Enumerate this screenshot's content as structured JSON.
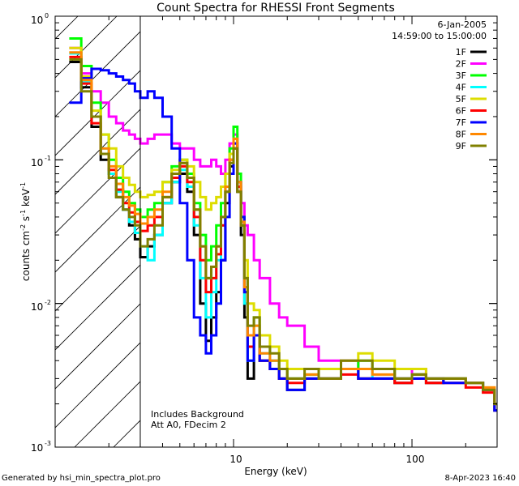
{
  "chart_data": {
    "type": "line",
    "title": "Count Spectra for RHESSI Front Segments",
    "xlabel": "Energy (keV)",
    "ylabel_parts": [
      "counts cm",
      "-2",
      " s",
      "-1",
      " keV",
      "-1"
    ],
    "xscale": "log",
    "yscale": "log",
    "xlim": [
      1,
      300
    ],
    "ylim": [
      0.001,
      1
    ],
    "x_tick_labels": [
      "10",
      "100"
    ],
    "y_tick_labels": [
      {
        "base": "10",
        "exp": "0"
      },
      {
        "base": "10",
        "exp": "-1"
      },
      {
        "base": "10",
        "exp": "-2"
      },
      {
        "base": "10",
        "exp": "-3"
      }
    ],
    "date": "6-Jan-2005",
    "time_range": "14:59:00 to 15:00:00",
    "annotations": [
      "Includes Background",
      "Att A0, FDecim 2"
    ],
    "attenuator_boundary_kev": 3,
    "series": [
      {
        "name": "1F",
        "color": "#000000",
        "x": [
          1.2,
          1.4,
          1.6,
          1.8,
          2.0,
          2.2,
          2.4,
          2.6,
          2.8,
          3.0,
          3.3,
          3.6,
          4.0,
          4.5,
          5.0,
          5.5,
          6.0,
          6.5,
          7.0,
          7.5,
          8.0,
          8.5,
          9.0,
          9.5,
          10.0,
          10.5,
          11.0,
          11.5,
          12.0,
          13.0,
          14.0,
          16.0,
          18.0,
          20.0,
          25.0,
          30.0,
          40.0,
          50.0,
          60.0,
          80.0,
          100.0,
          120.0,
          150.0,
          200.0,
          250.0,
          290.0
        ],
        "y": [
          0.48,
          0.32,
          0.17,
          0.1,
          0.08,
          0.055,
          0.045,
          0.035,
          0.028,
          0.021,
          0.025,
          0.03,
          0.05,
          0.07,
          0.08,
          0.06,
          0.03,
          0.01,
          0.0055,
          0.008,
          0.012,
          0.02,
          0.05,
          0.09,
          0.12,
          0.06,
          0.03,
          0.008,
          0.003,
          0.006,
          0.004,
          0.0035,
          0.003,
          0.0025,
          0.003,
          0.003,
          0.0035,
          0.003,
          0.003,
          0.0028,
          0.0032,
          0.0028,
          0.003,
          0.0028,
          0.0025,
          0.0018
        ]
      },
      {
        "name": "2F",
        "color": "#ff00ff",
        "x": [
          1.2,
          1.4,
          1.6,
          1.8,
          2.0,
          2.2,
          2.4,
          2.6,
          2.8,
          3.0,
          3.3,
          3.6,
          4.0,
          4.5,
          5.0,
          5.5,
          6.0,
          6.5,
          7.0,
          7.5,
          8.0,
          8.5,
          9.0,
          9.5,
          10.0,
          10.5,
          11.0,
          11.5,
          12.0,
          13.0,
          14.0,
          16.0,
          18.0,
          20.0,
          25.0,
          30.0,
          40.0,
          50.0,
          60.0,
          80.0,
          100.0,
          120.0,
          150.0,
          200.0,
          250.0,
          290.0
        ],
        "y": [
          0.6,
          0.4,
          0.3,
          0.25,
          0.2,
          0.18,
          0.16,
          0.15,
          0.14,
          0.13,
          0.14,
          0.15,
          0.15,
          0.13,
          0.12,
          0.12,
          0.1,
          0.09,
          0.09,
          0.1,
          0.09,
          0.08,
          0.1,
          0.13,
          0.15,
          0.07,
          0.05,
          0.035,
          0.03,
          0.02,
          0.015,
          0.01,
          0.008,
          0.007,
          0.005,
          0.004,
          0.004,
          0.0035,
          0.0035,
          0.003,
          0.0035,
          0.003,
          0.003,
          0.0028,
          0.0025,
          0.002
        ]
      },
      {
        "name": "3F",
        "color": "#00ff00",
        "x": [
          1.2,
          1.4,
          1.6,
          1.8,
          2.0,
          2.2,
          2.4,
          2.6,
          2.8,
          3.0,
          3.3,
          3.6,
          4.0,
          4.5,
          5.0,
          5.5,
          6.0,
          6.5,
          7.0,
          7.5,
          8.0,
          8.5,
          9.0,
          9.5,
          10.0,
          10.5,
          11.0,
          11.5,
          12.0,
          13.0,
          14.0,
          16.0,
          18.0,
          20.0,
          25.0,
          30.0,
          40.0,
          50.0,
          60.0,
          80.0,
          100.0,
          120.0,
          150.0,
          200.0,
          250.0,
          290.0
        ],
        "y": [
          0.7,
          0.45,
          0.25,
          0.15,
          0.1,
          0.075,
          0.06,
          0.05,
          0.045,
          0.04,
          0.045,
          0.05,
          0.07,
          0.09,
          0.1,
          0.08,
          0.05,
          0.03,
          0.02,
          0.025,
          0.035,
          0.05,
          0.08,
          0.12,
          0.17,
          0.08,
          0.04,
          0.015,
          0.006,
          0.008,
          0.005,
          0.004,
          0.0035,
          0.003,
          0.0032,
          0.003,
          0.0035,
          0.004,
          0.0035,
          0.003,
          0.0032,
          0.003,
          0.003,
          0.0028,
          0.0025,
          0.002
        ]
      },
      {
        "name": "4F",
        "color": "#00ffff",
        "x": [
          1.2,
          1.4,
          1.6,
          1.8,
          2.0,
          2.2,
          2.4,
          2.6,
          2.8,
          3.0,
          3.3,
          3.6,
          4.0,
          4.5,
          5.0,
          5.5,
          6.0,
          6.5,
          7.0,
          7.5,
          8.0,
          8.5,
          9.0,
          9.5,
          10.0,
          10.5,
          11.0,
          11.5,
          12.0,
          13.0,
          14.0,
          16.0,
          18.0,
          20.0,
          25.0,
          30.0,
          40.0,
          50.0,
          60.0,
          80.0,
          100.0,
          120.0,
          150.0,
          200.0,
          250.0,
          290.0
        ],
        "y": [
          0.55,
          0.35,
          0.2,
          0.12,
          0.08,
          0.06,
          0.045,
          0.037,
          0.031,
          0.025,
          0.02,
          0.03,
          0.05,
          0.07,
          0.085,
          0.065,
          0.035,
          0.015,
          0.008,
          0.012,
          0.02,
          0.035,
          0.06,
          0.1,
          0.14,
          0.07,
          0.035,
          0.01,
          0.004,
          0.007,
          0.0045,
          0.004,
          0.0035,
          0.003,
          0.003,
          0.003,
          0.0035,
          0.0035,
          0.003,
          0.003,
          0.003,
          0.003,
          0.003,
          0.0028,
          0.0025,
          0.0018
        ]
      },
      {
        "name": "5F",
        "color": "#dddd00",
        "x": [
          1.2,
          1.4,
          1.6,
          1.8,
          2.0,
          2.2,
          2.4,
          2.6,
          2.8,
          3.0,
          3.3,
          3.6,
          4.0,
          4.5,
          5.0,
          5.5,
          6.0,
          6.5,
          7.0,
          7.5,
          8.0,
          8.5,
          9.0,
          9.5,
          10.0,
          10.5,
          11.0,
          11.5,
          12.0,
          13.0,
          14.0,
          16.0,
          18.0,
          20.0,
          25.0,
          30.0,
          40.0,
          50.0,
          60.0,
          80.0,
          100.0,
          120.0,
          150.0,
          200.0,
          250.0,
          290.0
        ],
        "y": [
          0.6,
          0.38,
          0.22,
          0.15,
          0.12,
          0.09,
          0.075,
          0.067,
          0.06,
          0.055,
          0.057,
          0.06,
          0.07,
          0.085,
          0.1,
          0.09,
          0.07,
          0.055,
          0.045,
          0.05,
          0.055,
          0.065,
          0.08,
          0.11,
          0.14,
          0.07,
          0.04,
          0.02,
          0.01,
          0.009,
          0.006,
          0.005,
          0.004,
          0.0035,
          0.0035,
          0.0035,
          0.004,
          0.0045,
          0.004,
          0.0035,
          0.0035,
          0.003,
          0.003,
          0.0028,
          0.0026,
          0.002
        ]
      },
      {
        "name": "6F",
        "color": "#ff0000",
        "x": [
          1.2,
          1.4,
          1.6,
          1.8,
          2.0,
          2.2,
          2.4,
          2.6,
          2.8,
          3.0,
          3.3,
          3.6,
          4.0,
          4.5,
          5.0,
          5.5,
          6.0,
          6.5,
          7.0,
          7.5,
          8.0,
          8.5,
          9.0,
          9.5,
          10.0,
          10.5,
          11.0,
          11.5,
          12.0,
          13.0,
          14.0,
          16.0,
          18.0,
          20.0,
          25.0,
          30.0,
          40.0,
          50.0,
          60.0,
          80.0,
          100.0,
          120.0,
          150.0,
          200.0,
          250.0,
          290.0
        ],
        "y": [
          0.52,
          0.34,
          0.18,
          0.11,
          0.085,
          0.062,
          0.05,
          0.043,
          0.037,
          0.032,
          0.035,
          0.04,
          0.055,
          0.075,
          0.09,
          0.07,
          0.04,
          0.02,
          0.012,
          0.015,
          0.022,
          0.035,
          0.06,
          0.1,
          0.13,
          0.065,
          0.035,
          0.012,
          0.005,
          0.006,
          0.004,
          0.0035,
          0.003,
          0.0028,
          0.003,
          0.003,
          0.0032,
          0.003,
          0.003,
          0.0028,
          0.003,
          0.0028,
          0.0028,
          0.0026,
          0.0024,
          0.0018
        ]
      },
      {
        "name": "7F",
        "color": "#0000ff",
        "x": [
          1.2,
          1.4,
          1.6,
          1.8,
          2.0,
          2.2,
          2.4,
          2.6,
          2.8,
          3.0,
          3.3,
          3.6,
          4.0,
          4.5,
          5.0,
          5.5,
          6.0,
          6.5,
          7.0,
          7.5,
          8.0,
          8.5,
          9.0,
          9.5,
          10.0,
          10.5,
          11.0,
          11.5,
          12.0,
          13.0,
          14.0,
          16.0,
          18.0,
          20.0,
          25.0,
          30.0,
          40.0,
          50.0,
          60.0,
          80.0,
          100.0,
          120.0,
          150.0,
          200.0,
          250.0,
          290.0
        ],
        "y": [
          0.25,
          0.37,
          0.43,
          0.42,
          0.4,
          0.38,
          0.36,
          0.34,
          0.3,
          0.27,
          0.3,
          0.27,
          0.2,
          0.12,
          0.05,
          0.02,
          0.008,
          0.006,
          0.0045,
          0.006,
          0.01,
          0.02,
          0.04,
          0.08,
          0.13,
          0.07,
          0.04,
          0.012,
          0.004,
          0.006,
          0.004,
          0.0035,
          0.003,
          0.0025,
          0.003,
          0.003,
          0.0035,
          0.003,
          0.003,
          0.003,
          0.003,
          0.003,
          0.0028,
          0.0028,
          0.0025,
          0.0018
        ]
      },
      {
        "name": "8F",
        "color": "#ff8800",
        "x": [
          1.2,
          1.4,
          1.6,
          1.8,
          2.0,
          2.2,
          2.4,
          2.6,
          2.8,
          3.0,
          3.3,
          3.6,
          4.0,
          4.5,
          5.0,
          5.5,
          6.0,
          6.5,
          7.0,
          7.5,
          8.0,
          8.5,
          9.0,
          9.5,
          10.0,
          10.5,
          11.0,
          11.5,
          12.0,
          13.0,
          14.0,
          16.0,
          18.0,
          20.0,
          25.0,
          30.0,
          40.0,
          50.0,
          60.0,
          80.0,
          100.0,
          120.0,
          150.0,
          200.0,
          250.0,
          290.0
        ],
        "y": [
          0.56,
          0.36,
          0.2,
          0.12,
          0.09,
          0.068,
          0.055,
          0.048,
          0.042,
          0.036,
          0.04,
          0.045,
          0.06,
          0.08,
          0.095,
          0.075,
          0.045,
          0.025,
          0.015,
          0.018,
          0.025,
          0.04,
          0.065,
          0.1,
          0.14,
          0.07,
          0.037,
          0.013,
          0.006,
          0.007,
          0.0045,
          0.004,
          0.0035,
          0.003,
          0.0032,
          0.003,
          0.0035,
          0.0035,
          0.0032,
          0.003,
          0.0032,
          0.003,
          0.003,
          0.0028,
          0.0026,
          0.002
        ]
      },
      {
        "name": "9F",
        "color": "#808000",
        "x": [
          1.2,
          1.4,
          1.6,
          1.8,
          2.0,
          2.2,
          2.4,
          2.6,
          2.8,
          3.0,
          3.3,
          3.6,
          4.0,
          4.5,
          5.0,
          5.5,
          6.0,
          6.5,
          7.0,
          7.5,
          8.0,
          8.5,
          9.0,
          9.5,
          10.0,
          10.5,
          11.0,
          11.5,
          12.0,
          13.0,
          14.0,
          16.0,
          18.0,
          20.0,
          25.0,
          30.0,
          40.0,
          50.0,
          60.0,
          80.0,
          100.0,
          120.0,
          150.0,
          200.0,
          250.0,
          290.0
        ],
        "y": [
          0.5,
          0.3,
          0.2,
          0.11,
          0.075,
          0.055,
          0.045,
          0.04,
          0.035,
          0.025,
          0.028,
          0.035,
          0.055,
          0.08,
          0.095,
          0.075,
          0.045,
          0.025,
          0.015,
          0.018,
          0.025,
          0.04,
          0.06,
          0.095,
          0.12,
          0.06,
          0.035,
          0.015,
          0.007,
          0.008,
          0.005,
          0.0045,
          0.0035,
          0.003,
          0.0035,
          0.003,
          0.004,
          0.004,
          0.0035,
          0.003,
          0.0032,
          0.003,
          0.003,
          0.0028,
          0.0025,
          0.002
        ]
      }
    ]
  },
  "footer": {
    "left": "Generated by hsi_min_spectra_plot.pro",
    "right": "8-Apr-2023 16:40"
  }
}
